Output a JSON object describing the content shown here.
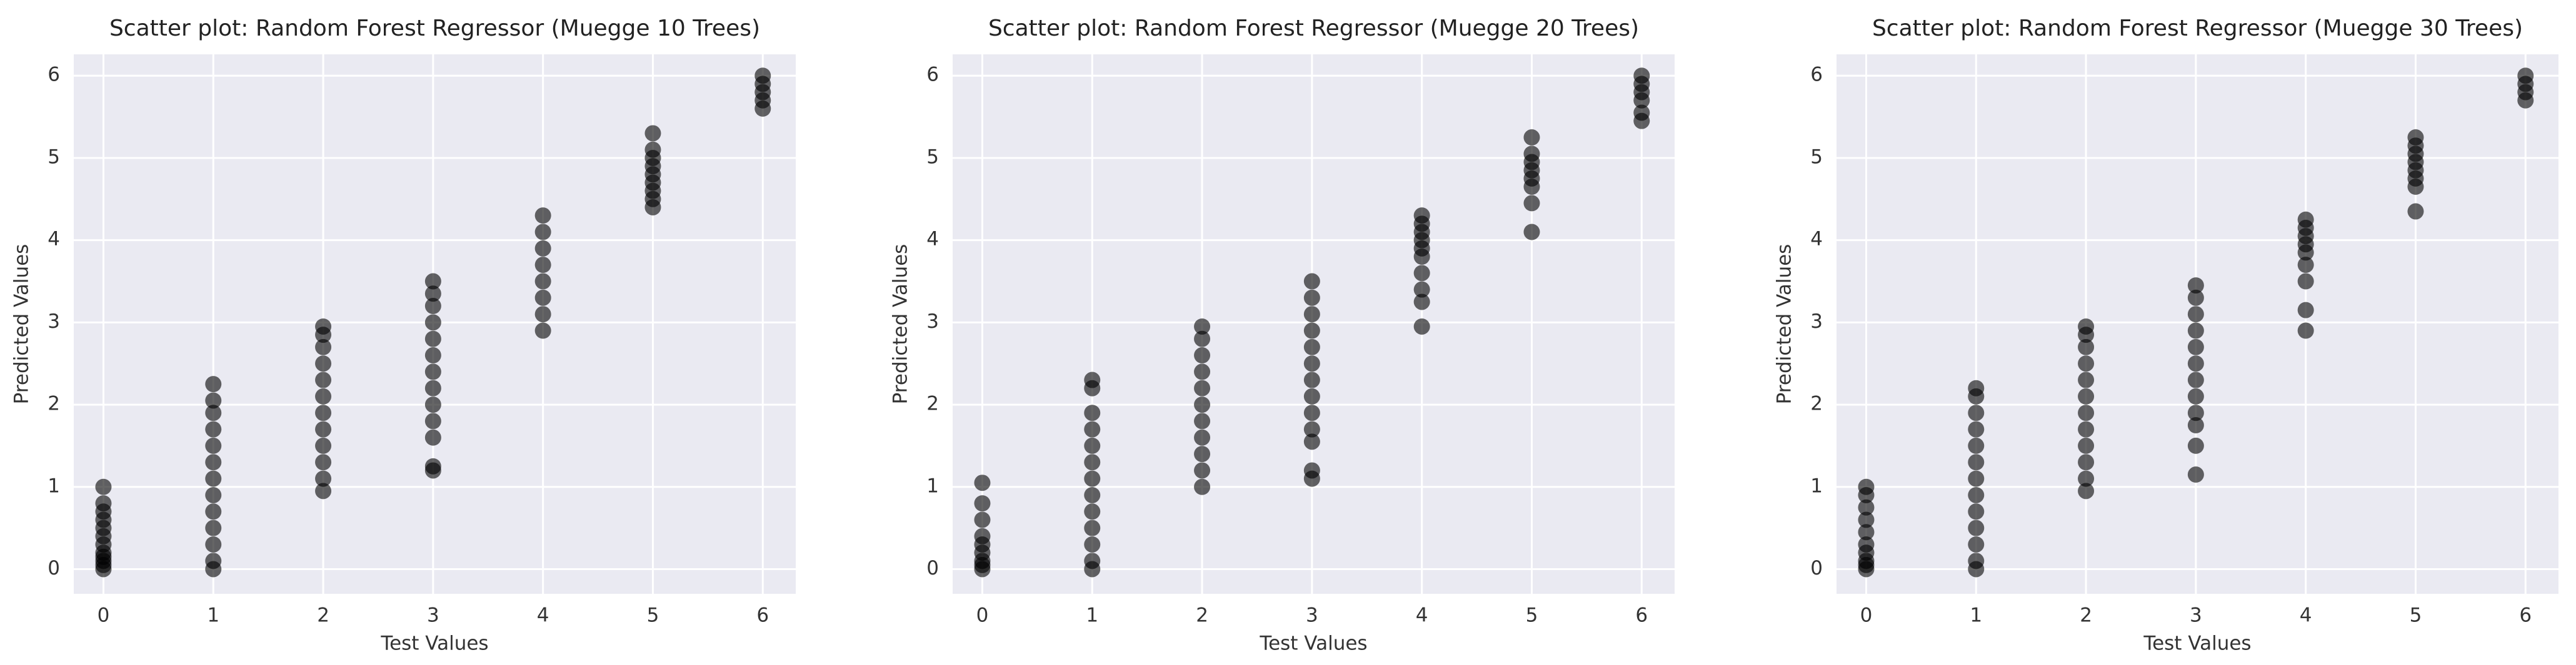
{
  "chart_data": [
    {
      "type": "scatter",
      "title": "Scatter plot: Random Forest Regressor (Muegge 10 Trees)",
      "x_label": "Test Values",
      "y_label": "Predicted Values",
      "x": [
        0,
        0,
        0,
        0,
        0,
        0,
        0,
        0,
        0,
        0,
        0,
        0,
        1,
        1,
        1,
        1,
        1,
        1,
        1,
        1,
        1,
        1,
        1,
        1,
        1,
        2,
        2,
        2,
        2,
        2,
        2,
        2,
        2,
        2,
        2,
        2,
        2,
        3,
        3,
        3,
        3,
        3,
        3,
        3,
        3,
        3,
        3,
        3,
        3,
        3,
        4,
        4,
        4,
        4,
        4,
        4,
        4,
        4,
        5,
        5,
        5,
        5,
        5,
        5,
        5,
        5,
        5,
        6,
        6,
        6,
        6,
        6
      ],
      "y": [
        0,
        0.05,
        0.1,
        0.15,
        0.2,
        0.3,
        0.4,
        0.5,
        0.6,
        0.7,
        0.8,
        1.0,
        0,
        0.1,
        0.3,
        0.5,
        0.7,
        0.9,
        1.1,
        1.3,
        1.5,
        1.7,
        1.9,
        2.05,
        2.25,
        0.95,
        1.1,
        1.3,
        1.5,
        1.7,
        1.9,
        2.1,
        2.3,
        2.5,
        2.7,
        2.85,
        2.95,
        1.2,
        1.25,
        1.6,
        1.8,
        2.0,
        2.2,
        2.4,
        2.6,
        2.8,
        3.0,
        3.2,
        3.35,
        3.5,
        2.9,
        3.1,
        3.3,
        3.5,
        3.7,
        3.9,
        4.1,
        4.3,
        4.4,
        4.5,
        4.6,
        4.7,
        4.8,
        4.9,
        5.0,
        5.1,
        5.3,
        5.6,
        5.7,
        5.8,
        5.9,
        6.0
      ],
      "color": "#000000",
      "alpha": 0.6,
      "xlim": [
        -0.27,
        6.3
      ],
      "ylim": [
        -0.3,
        6.26
      ],
      "xticks": [
        0,
        1,
        2,
        3,
        4,
        5,
        6
      ],
      "yticks": [
        0,
        1,
        2,
        3,
        4,
        5,
        6
      ],
      "grid": true
    },
    {
      "type": "scatter",
      "title": "Scatter plot: Random Forest Regressor (Muegge 20 Trees)",
      "x_label": "Test Values",
      "y_label": "Predicted Values",
      "x": [
        0,
        0,
        0,
        0,
        0,
        0,
        0,
        0,
        0,
        1,
        1,
        1,
        1,
        1,
        1,
        1,
        1,
        1,
        1,
        1,
        1,
        1,
        2,
        2,
        2,
        2,
        2,
        2,
        2,
        2,
        2,
        2,
        2,
        3,
        3,
        3,
        3,
        3,
        3,
        3,
        3,
        3,
        3,
        3,
        3,
        3,
        4,
        4,
        4,
        4,
        4,
        4,
        4,
        4,
        4,
        4,
        5,
        5,
        5,
        5,
        5,
        5,
        5,
        5,
        6,
        6,
        6,
        6,
        6,
        6
      ],
      "y": [
        0,
        0.05,
        0.1,
        0.2,
        0.3,
        0.4,
        0.6,
        0.8,
        1.05,
        0,
        0.1,
        0.3,
        0.5,
        0.7,
        0.9,
        1.1,
        1.3,
        1.5,
        1.7,
        1.9,
        2.2,
        2.3,
        1.0,
        1.2,
        1.4,
        1.6,
        1.8,
        2.0,
        2.2,
        2.4,
        2.6,
        2.8,
        2.95,
        1.1,
        1.2,
        1.55,
        1.7,
        1.9,
        2.1,
        2.3,
        2.5,
        2.7,
        2.9,
        3.1,
        3.3,
        3.5,
        2.95,
        3.25,
        3.4,
        3.6,
        3.8,
        3.9,
        4.0,
        4.1,
        4.2,
        4.3,
        4.1,
        4.45,
        4.65,
        4.75,
        4.85,
        4.95,
        5.05,
        5.25,
        5.45,
        5.55,
        5.7,
        5.8,
        5.9,
        6.0
      ],
      "color": "#000000",
      "alpha": 0.6,
      "xlim": [
        -0.27,
        6.3
      ],
      "ylim": [
        -0.3,
        6.26
      ],
      "xticks": [
        0,
        1,
        2,
        3,
        4,
        5,
        6
      ],
      "yticks": [
        0,
        1,
        2,
        3,
        4,
        5,
        6
      ],
      "grid": true
    },
    {
      "type": "scatter",
      "title": "Scatter plot: Random Forest Regressor (Muegge 30 Trees)",
      "x_label": "Test Values",
      "y_label": "Predicted Values",
      "x": [
        0,
        0,
        0,
        0,
        0,
        0,
        0,
        0,
        0,
        0,
        1,
        1,
        1,
        1,
        1,
        1,
        1,
        1,
        1,
        1,
        1,
        1,
        1,
        2,
        2,
        2,
        2,
        2,
        2,
        2,
        2,
        2,
        2,
        2,
        2,
        3,
        3,
        3,
        3,
        3,
        3,
        3,
        3,
        3,
        3,
        3,
        3,
        4,
        4,
        4,
        4,
        4,
        4,
        4,
        4,
        4,
        5,
        5,
        5,
        5,
        5,
        5,
        5,
        5,
        6,
        6,
        6,
        6
      ],
      "y": [
        0,
        0.05,
        0.1,
        0.2,
        0.3,
        0.45,
        0.6,
        0.75,
        0.9,
        1.0,
        0,
        0.1,
        0.3,
        0.5,
        0.7,
        0.9,
        1.1,
        1.3,
        1.5,
        1.7,
        1.9,
        2.1,
        2.2,
        0.95,
        1.1,
        1.3,
        1.5,
        1.7,
        1.9,
        2.1,
        2.3,
        2.5,
        2.7,
        2.85,
        2.95,
        1.15,
        1.5,
        1.75,
        1.9,
        2.1,
        2.3,
        2.5,
        2.7,
        2.9,
        3.1,
        3.3,
        3.45,
        2.9,
        3.15,
        3.5,
        3.7,
        3.85,
        3.95,
        4.05,
        4.15,
        4.25,
        4.35,
        4.65,
        4.75,
        4.85,
        4.95,
        5.05,
        5.15,
        5.25,
        5.7,
        5.8,
        5.9,
        6.0
      ],
      "color": "#000000",
      "alpha": 0.6,
      "xlim": [
        -0.27,
        6.3
      ],
      "ylim": [
        -0.3,
        6.26
      ],
      "xticks": [
        0,
        1,
        2,
        3,
        4,
        5,
        6
      ],
      "yticks": [
        0,
        1,
        2,
        3,
        4,
        5,
        6
      ],
      "grid": true
    }
  ]
}
